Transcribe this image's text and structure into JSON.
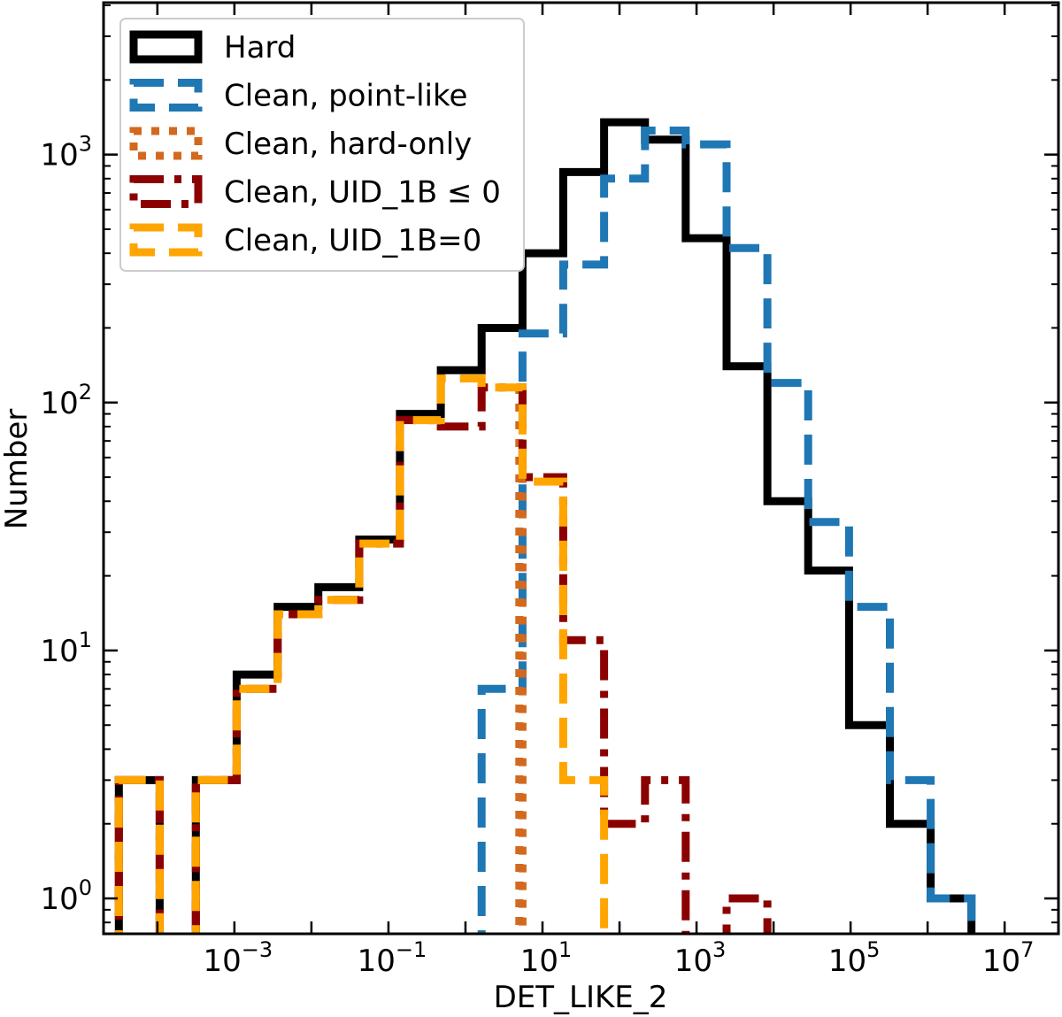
{
  "chart_data": {
    "type": "line",
    "xlabel": "DET_LIKE_2",
    "ylabel": "Number",
    "xscale": "log",
    "yscale": "log",
    "legend_position": "top-left",
    "x_tick_values": [
      -3,
      -1,
      1,
      3,
      5,
      7
    ],
    "y_tick_values": [
      0,
      1,
      2,
      3
    ],
    "x_tick_labels": [
      {
        "base": "10",
        "exp": "−3"
      },
      {
        "base": "10",
        "exp": "−1"
      },
      {
        "base": "10",
        "exp": "1"
      },
      {
        "base": "10",
        "exp": "3"
      },
      {
        "base": "10",
        "exp": "5"
      },
      {
        "base": "10",
        "exp": "7"
      }
    ],
    "y_tick_labels": [
      {
        "base": "10",
        "exp": "0"
      },
      {
        "base": "10",
        "exp": "1"
      },
      {
        "base": "10",
        "exp": "2"
      },
      {
        "base": "10",
        "exp": "3"
      }
    ],
    "series": [
      {
        "name": "Hard",
        "color": "#000000",
        "dash": "solid",
        "edges": [
          3.16e-05,
          0.000107,
          0.000316,
          0.00107,
          0.00364,
          0.0123,
          0.0417,
          0.141,
          0.479,
          1.62,
          5.5,
          18.6,
          63.1,
          214,
          724,
          2455,
          8318,
          28184,
          95500,
          323594,
          1096478,
          3715352,
          12589254
        ],
        "counts": [
          3,
          0,
          3,
          8,
          15,
          18,
          28,
          90,
          135,
          200,
          400,
          850,
          1350,
          1150,
          460,
          140,
          40,
          21,
          5,
          2,
          1,
          0
        ]
      },
      {
        "name": "Clean, point-like",
        "color": "#1f77b4",
        "dash": "dashed",
        "edges": [
          1.62,
          5.5,
          18.6,
          63.1,
          214,
          724,
          2455,
          8318,
          28184,
          95500,
          323594,
          1096478,
          3715352
        ],
        "counts": [
          7,
          190,
          360,
          800,
          1250,
          1100,
          420,
          120,
          33,
          15,
          3,
          1,
          0
        ]
      },
      {
        "name": "Clean, hard-only",
        "color": "#d2691e",
        "dash": "dotted",
        "edges": [
          5.0,
          5.5
        ],
        "counts": [
          120
        ]
      },
      {
        "name": "Clean, UID_1B ≤ 0",
        "color": "#8b0000",
        "dash": "dashdot",
        "edges": [
          3.16e-05,
          0.000107,
          0.000316,
          0.00107,
          0.00364,
          0.0123,
          0.0417,
          0.141,
          0.479,
          1.62,
          5.5,
          18.6,
          63.1,
          214,
          724,
          2455,
          8318
        ],
        "counts": [
          3,
          0,
          3,
          7,
          14,
          16,
          27,
          85,
          80,
          115,
          50,
          11,
          2,
          3,
          0,
          1,
          0
        ]
      },
      {
        "name": "Clean, UID_1B=0",
        "color": "#ffa500",
        "dash": "dashed",
        "edges": [
          3.16e-05,
          0.000107,
          0.000316,
          0.00107,
          0.00364,
          0.0123,
          0.0417,
          0.141,
          0.479,
          1.62,
          5.5,
          18.6,
          63.1
        ],
        "counts": [
          3,
          0,
          3,
          7,
          14,
          16,
          27,
          85,
          125,
          115,
          48,
          3,
          0
        ]
      }
    ]
  }
}
